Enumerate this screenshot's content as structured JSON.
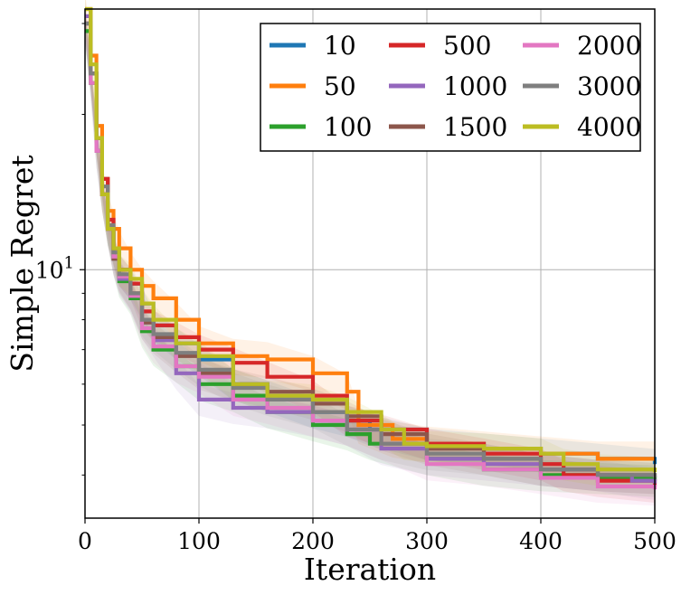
{
  "chart_data": {
    "type": "line",
    "xlabel": "Iteration",
    "ylabel": "Simple Regret",
    "xlim": [
      0,
      500
    ],
    "ylim": [
      3.3,
      32
    ],
    "yscale": "log",
    "x_ticks": [
      0,
      100,
      200,
      300,
      400,
      500
    ],
    "x_tick_labels": [
      "0",
      "100",
      "200",
      "300",
      "400",
      "500"
    ],
    "y_major_ticks": [
      10
    ],
    "y_tick_labels": [
      {
        "base": "10",
        "exp": "1"
      }
    ],
    "y_minor_ticks": [
      4,
      5,
      6,
      7,
      8,
      9,
      20,
      30
    ],
    "grid": true,
    "legend": {
      "placement": "top-right",
      "columns": 3
    },
    "series": [
      {
        "name": "10",
        "color": "#1f77b4",
        "band": 0.07,
        "points": [
          [
            0,
            30
          ],
          [
            5,
            24
          ],
          [
            10,
            18
          ],
          [
            15,
            15
          ],
          [
            20,
            12
          ],
          [
            25,
            11
          ],
          [
            30,
            10
          ],
          [
            40,
            9.4
          ],
          [
            50,
            8.6
          ],
          [
            60,
            7.8
          ],
          [
            80,
            7.2
          ],
          [
            100,
            6.7
          ],
          [
            130,
            6.0
          ],
          [
            160,
            5.7
          ],
          [
            200,
            5.3
          ],
          [
            230,
            5.1
          ],
          [
            250,
            4.9
          ],
          [
            300,
            4.6
          ],
          [
            350,
            4.5
          ],
          [
            400,
            4.4
          ],
          [
            450,
            4.3
          ],
          [
            500,
            4.2
          ]
        ]
      },
      {
        "name": "50",
        "color": "#ff7f0e",
        "band": 0.08,
        "points": [
          [
            0,
            32
          ],
          [
            5,
            26
          ],
          [
            10,
            19
          ],
          [
            15,
            15
          ],
          [
            20,
            13
          ],
          [
            25,
            12
          ],
          [
            30,
            11
          ],
          [
            40,
            10
          ],
          [
            50,
            9.3
          ],
          [
            60,
            8.8
          ],
          [
            80,
            8.0
          ],
          [
            100,
            7.2
          ],
          [
            130,
            6.8
          ],
          [
            160,
            6.7
          ],
          [
            200,
            6.3
          ],
          [
            230,
            5.8
          ],
          [
            240,
            5.0
          ],
          [
            270,
            4.7
          ],
          [
            300,
            4.6
          ],
          [
            350,
            4.5
          ],
          [
            400,
            4.4
          ],
          [
            450,
            4.3
          ],
          [
            500,
            4.3
          ]
        ]
      },
      {
        "name": "100",
        "color": "#2ca02c",
        "band": 0.07,
        "points": [
          [
            0,
            29
          ],
          [
            5,
            23
          ],
          [
            10,
            17
          ],
          [
            15,
            14
          ],
          [
            20,
            12
          ],
          [
            25,
            10.5
          ],
          [
            30,
            9.5
          ],
          [
            40,
            8.8
          ],
          [
            50,
            7.6
          ],
          [
            60,
            7.0
          ],
          [
            80,
            6.5
          ],
          [
            100,
            6.0
          ],
          [
            130,
            5.7
          ],
          [
            160,
            5.3
          ],
          [
            200,
            5.0
          ],
          [
            230,
            4.8
          ],
          [
            250,
            4.6
          ],
          [
            300,
            4.3
          ],
          [
            350,
            4.1
          ],
          [
            400,
            4.0
          ],
          [
            450,
            3.95
          ],
          [
            500,
            3.9
          ]
        ]
      },
      {
        "name": "500",
        "color": "#d62728",
        "band": 0.07,
        "points": [
          [
            0,
            30
          ],
          [
            5,
            24
          ],
          [
            10,
            18
          ],
          [
            15,
            15
          ],
          [
            20,
            12.5
          ],
          [
            25,
            11
          ],
          [
            30,
            10
          ],
          [
            40,
            9.4
          ],
          [
            50,
            8.3
          ],
          [
            60,
            7.8
          ],
          [
            80,
            7.4
          ],
          [
            100,
            7.0
          ],
          [
            130,
            6.6
          ],
          [
            160,
            6.2
          ],
          [
            200,
            5.7
          ],
          [
            230,
            5.1
          ],
          [
            260,
            4.9
          ],
          [
            300,
            4.6
          ],
          [
            350,
            4.4
          ],
          [
            400,
            4.2
          ],
          [
            420,
            4.0
          ],
          [
            450,
            3.9
          ],
          [
            500,
            3.8
          ]
        ]
      },
      {
        "name": "1000",
        "color": "#9467bd",
        "band": 0.07,
        "points": [
          [
            0,
            31
          ],
          [
            5,
            24
          ],
          [
            10,
            17
          ],
          [
            15,
            14
          ],
          [
            20,
            12
          ],
          [
            25,
            10.5
          ],
          [
            30,
            9.6
          ],
          [
            40,
            8.9
          ],
          [
            50,
            7.9
          ],
          [
            60,
            7.3
          ],
          [
            80,
            6.3
          ],
          [
            100,
            5.6
          ],
          [
            130,
            5.4
          ],
          [
            160,
            5.3
          ],
          [
            200,
            5.1
          ],
          [
            230,
            4.9
          ],
          [
            260,
            4.5
          ],
          [
            300,
            4.3
          ],
          [
            350,
            4.2
          ],
          [
            400,
            4.1
          ],
          [
            450,
            4.0
          ],
          [
            480,
            3.9
          ],
          [
            500,
            3.85
          ]
        ]
      },
      {
        "name": "1500",
        "color": "#8c564b",
        "band": 0.07,
        "points": [
          [
            0,
            30
          ],
          [
            5,
            24
          ],
          [
            10,
            18
          ],
          [
            15,
            14
          ],
          [
            20,
            12
          ],
          [
            25,
            10.5
          ],
          [
            30,
            9.7
          ],
          [
            40,
            9.0
          ],
          [
            50,
            7.9
          ],
          [
            60,
            7.4
          ],
          [
            80,
            6.8
          ],
          [
            100,
            6.3
          ],
          [
            130,
            6.0
          ],
          [
            160,
            5.8
          ],
          [
            200,
            5.5
          ],
          [
            230,
            5.2
          ],
          [
            260,
            4.8
          ],
          [
            300,
            4.5
          ],
          [
            350,
            4.3
          ],
          [
            400,
            4.1
          ],
          [
            450,
            4.0
          ],
          [
            500,
            3.95
          ]
        ]
      },
      {
        "name": "2000",
        "color": "#e377c2",
        "band": 0.07,
        "points": [
          [
            0,
            30
          ],
          [
            5,
            23
          ],
          [
            10,
            17
          ],
          [
            15,
            14
          ],
          [
            20,
            12
          ],
          [
            25,
            10.6
          ],
          [
            30,
            9.7
          ],
          [
            40,
            8.9
          ],
          [
            50,
            7.7
          ],
          [
            60,
            7.1
          ],
          [
            80,
            6.5
          ],
          [
            100,
            6.2
          ],
          [
            130,
            5.6
          ],
          [
            160,
            5.4
          ],
          [
            200,
            5.1
          ],
          [
            230,
            4.9
          ],
          [
            260,
            4.6
          ],
          [
            300,
            4.2
          ],
          [
            350,
            4.1
          ],
          [
            400,
            3.95
          ],
          [
            450,
            3.8
          ],
          [
            500,
            3.75
          ]
        ]
      },
      {
        "name": "3000",
        "color": "#7f7f7f",
        "band": 0.07,
        "points": [
          [
            0,
            30
          ],
          [
            5,
            24
          ],
          [
            10,
            18
          ],
          [
            15,
            14.5
          ],
          [
            20,
            12.2
          ],
          [
            25,
            10.8
          ],
          [
            30,
            9.8
          ],
          [
            40,
            9.0
          ],
          [
            50,
            8.0
          ],
          [
            60,
            7.5
          ],
          [
            80,
            6.9
          ],
          [
            100,
            6.4
          ],
          [
            130,
            5.9
          ],
          [
            160,
            5.6
          ],
          [
            200,
            5.3
          ],
          [
            230,
            4.9
          ],
          [
            260,
            4.6
          ],
          [
            300,
            4.4
          ],
          [
            350,
            4.3
          ],
          [
            400,
            4.1
          ],
          [
            450,
            4.0
          ],
          [
            500,
            3.95
          ]
        ]
      },
      {
        "name": "4000",
        "color": "#bcbd22",
        "band": 0.07,
        "points": [
          [
            0,
            32
          ],
          [
            5,
            25
          ],
          [
            10,
            18
          ],
          [
            15,
            14
          ],
          [
            20,
            12
          ],
          [
            25,
            11
          ],
          [
            30,
            10
          ],
          [
            40,
            9.6
          ],
          [
            50,
            8.6
          ],
          [
            60,
            8.0
          ],
          [
            80,
            7.2
          ],
          [
            100,
            6.8
          ],
          [
            130,
            6.0
          ],
          [
            160,
            5.7
          ],
          [
            200,
            5.6
          ],
          [
            230,
            5.3
          ],
          [
            260,
            4.9
          ],
          [
            280,
            4.6
          ],
          [
            300,
            4.55
          ],
          [
            350,
            4.5
          ],
          [
            400,
            4.4
          ],
          [
            420,
            4.2
          ],
          [
            450,
            4.1
          ],
          [
            500,
            4.05
          ]
        ]
      }
    ]
  }
}
